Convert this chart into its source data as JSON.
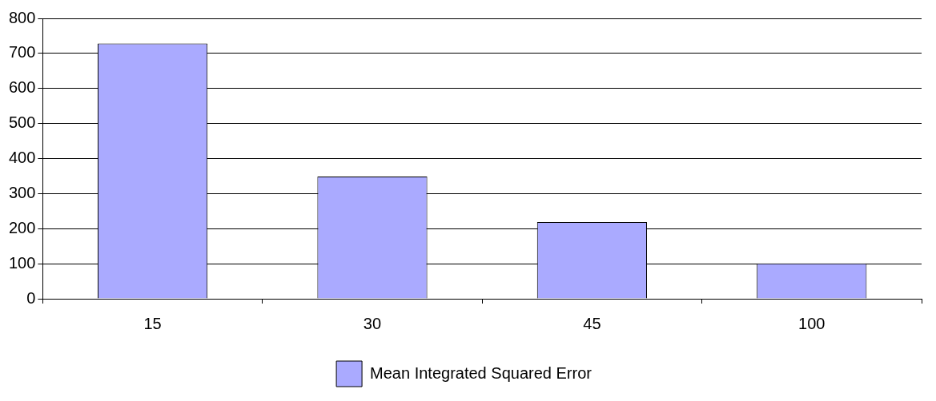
{
  "chart_data": {
    "type": "bar",
    "categories": [
      "15",
      "30",
      "45",
      "100"
    ],
    "series": [
      {
        "name": "Mean Integrated Squared Error",
        "color": "#aaaaff",
        "values": [
          728,
          349,
          219,
          101
        ]
      }
    ],
    "ylim": [
      0,
      800
    ],
    "yticks": [
      0,
      100,
      200,
      300,
      400,
      500,
      600,
      700,
      800
    ],
    "grid": "y",
    "legend": "bottom"
  }
}
